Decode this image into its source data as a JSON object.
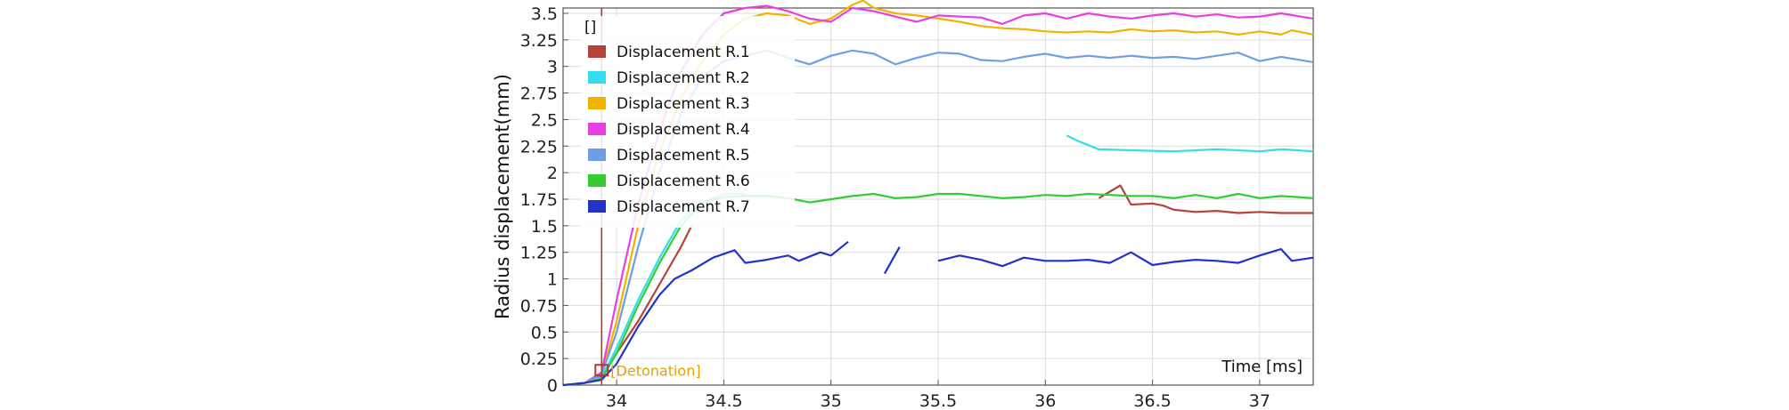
{
  "chart_data": {
    "type": "line",
    "xlabel": "Time [ms]",
    "ylabel": "Radius displacement(mm)",
    "xlim": [
      33.75,
      37.25
    ],
    "ylim": [
      0,
      3.55
    ],
    "x_ticks": [
      "34",
      "34.5",
      "35",
      "35.5",
      "36",
      "36.5",
      "37"
    ],
    "x_tick_values": [
      34,
      34.5,
      35,
      35.5,
      36,
      36.5,
      37
    ],
    "y_ticks": [
      "0",
      "0.25",
      "0.5",
      "0.75",
      "1",
      "1.25",
      "1.5",
      "1.75",
      "2",
      "2.25",
      "2.5",
      "2.75",
      "3",
      "3.25",
      "3.5"
    ],
    "y_tick_values": [
      0,
      0.25,
      0.5,
      0.75,
      1,
      1.25,
      1.5,
      1.75,
      2,
      2.25,
      2.5,
      2.75,
      3,
      3.25,
      3.5
    ],
    "grid": true,
    "legend_placement": "top-left",
    "legend_header": "[]",
    "annotation": {
      "text": "[Detonation]",
      "x": 33.93,
      "y": 0.14,
      "color": "#e8a000"
    },
    "marker_line": {
      "x": 33.93,
      "color": "#b03a2e"
    },
    "series": [
      {
        "name": "Displacement R.1",
        "color": "#b5433a",
        "segments": [
          [
            [
              33.75,
              0
            ],
            [
              33.85,
              0.02
            ],
            [
              33.93,
              0.08
            ],
            [
              34.0,
              0.3
            ],
            [
              34.1,
              0.6
            ],
            [
              34.2,
              0.95
            ],
            [
              34.3,
              1.3
            ],
            [
              34.35,
              1.5
            ]
          ],
          [
            [
              36.25,
              1.76
            ],
            [
              36.35,
              1.88
            ],
            [
              36.4,
              1.7
            ],
            [
              36.5,
              1.71
            ],
            [
              36.55,
              1.69
            ],
            [
              36.6,
              1.65
            ],
            [
              36.7,
              1.63
            ],
            [
              36.8,
              1.64
            ],
            [
              36.9,
              1.62
            ],
            [
              37.0,
              1.63
            ],
            [
              37.1,
              1.62
            ],
            [
              37.25,
              1.62
            ]
          ]
        ]
      },
      {
        "name": "Displacement R.2",
        "color": "#33ddee",
        "segments": [
          [
            [
              33.75,
              0
            ],
            [
              33.85,
              0.02
            ],
            [
              33.93,
              0.07
            ],
            [
              34.0,
              0.35
            ],
            [
              34.1,
              0.8
            ],
            [
              34.2,
              1.2
            ],
            [
              34.3,
              1.55
            ],
            [
              34.4,
              1.72
            ],
            [
              34.5,
              1.8
            ],
            [
              34.6,
              1.8
            ]
          ],
          [
            [
              36.1,
              2.35
            ],
            [
              36.15,
              2.3
            ],
            [
              36.25,
              2.22
            ],
            [
              36.4,
              2.21
            ],
            [
              36.6,
              2.2
            ],
            [
              36.8,
              2.22
            ],
            [
              37.0,
              2.2
            ],
            [
              37.1,
              2.22
            ],
            [
              37.25,
              2.2
            ]
          ]
        ]
      },
      {
        "name": "Displacement R.3",
        "color": "#f0b400",
        "segments": [
          [
            [
              33.75,
              0
            ],
            [
              33.85,
              0.02
            ],
            [
              33.93,
              0.1
            ],
            [
              34.0,
              0.6
            ],
            [
              34.1,
              1.5
            ],
            [
              34.2,
              2.2
            ],
            [
              34.3,
              2.7
            ],
            [
              34.4,
              3.05
            ],
            [
              34.5,
              3.3
            ],
            [
              34.6,
              3.45
            ],
            [
              34.7,
              3.5
            ],
            [
              34.8,
              3.48
            ],
            [
              34.9,
              3.4
            ],
            [
              35.0,
              3.45
            ],
            [
              35.1,
              3.58
            ],
            [
              35.15,
              3.62
            ],
            [
              35.2,
              3.55
            ],
            [
              35.3,
              3.5
            ],
            [
              35.4,
              3.48
            ],
            [
              35.5,
              3.45
            ],
            [
              35.6,
              3.42
            ],
            [
              35.7,
              3.38
            ],
            [
              35.8,
              3.36
            ],
            [
              35.9,
              3.35
            ],
            [
              36.0,
              3.33
            ],
            [
              36.1,
              3.32
            ],
            [
              36.2,
              3.33
            ],
            [
              36.3,
              3.32
            ],
            [
              36.4,
              3.35
            ],
            [
              36.5,
              3.33
            ],
            [
              36.6,
              3.34
            ],
            [
              36.7,
              3.32
            ],
            [
              36.8,
              3.33
            ],
            [
              36.9,
              3.3
            ],
            [
              37.0,
              3.33
            ],
            [
              37.1,
              3.3
            ],
            [
              37.15,
              3.34
            ],
            [
              37.25,
              3.3
            ]
          ]
        ]
      },
      {
        "name": "Displacement R.4",
        "color": "#e840e0",
        "segments": [
          [
            [
              33.75,
              0
            ],
            [
              33.85,
              0.02
            ],
            [
              33.93,
              0.12
            ],
            [
              34.0,
              0.8
            ],
            [
              34.1,
              1.7
            ],
            [
              34.2,
              2.4
            ],
            [
              34.3,
              2.95
            ],
            [
              34.4,
              3.3
            ],
            [
              34.5,
              3.5
            ],
            [
              34.6,
              3.55
            ],
            [
              34.7,
              3.57
            ],
            [
              34.8,
              3.52
            ],
            [
              34.9,
              3.45
            ],
            [
              35.0,
              3.42
            ],
            [
              35.1,
              3.55
            ],
            [
              35.2,
              3.52
            ],
            [
              35.3,
              3.47
            ],
            [
              35.4,
              3.42
            ],
            [
              35.5,
              3.48
            ],
            [
              35.6,
              3.47
            ],
            [
              35.7,
              3.46
            ],
            [
              35.8,
              3.4
            ],
            [
              35.9,
              3.48
            ],
            [
              36.0,
              3.5
            ],
            [
              36.1,
              3.45
            ],
            [
              36.2,
              3.5
            ],
            [
              36.3,
              3.47
            ],
            [
              36.4,
              3.45
            ],
            [
              36.5,
              3.48
            ],
            [
              36.6,
              3.5
            ],
            [
              36.7,
              3.47
            ],
            [
              36.8,
              3.49
            ],
            [
              36.9,
              3.46
            ],
            [
              37.0,
              3.47
            ],
            [
              37.1,
              3.5
            ],
            [
              37.25,
              3.45
            ]
          ]
        ]
      },
      {
        "name": "Displacement R.5",
        "color": "#6f9ee8",
        "segments": [
          [
            [
              33.75,
              0
            ],
            [
              33.85,
              0.02
            ],
            [
              33.93,
              0.1
            ],
            [
              34.0,
              0.5
            ],
            [
              34.1,
              1.3
            ],
            [
              34.2,
              2.0
            ],
            [
              34.3,
              2.55
            ],
            [
              34.4,
              2.9
            ],
            [
              34.5,
              3.05
            ],
            [
              34.6,
              3.1
            ],
            [
              34.7,
              3.15
            ],
            [
              34.8,
              3.08
            ],
            [
              34.9,
              3.02
            ],
            [
              35.0,
              3.1
            ],
            [
              35.1,
              3.15
            ],
            [
              35.2,
              3.12
            ],
            [
              35.3,
              3.02
            ],
            [
              35.4,
              3.08
            ],
            [
              35.5,
              3.13
            ],
            [
              35.6,
              3.12
            ],
            [
              35.7,
              3.06
            ],
            [
              35.8,
              3.05
            ],
            [
              35.9,
              3.09
            ],
            [
              36.0,
              3.12
            ],
            [
              36.1,
              3.08
            ],
            [
              36.2,
              3.1
            ],
            [
              36.3,
              3.08
            ],
            [
              36.4,
              3.1
            ],
            [
              36.5,
              3.08
            ],
            [
              36.6,
              3.09
            ],
            [
              36.7,
              3.07
            ],
            [
              36.8,
              3.1
            ],
            [
              36.9,
              3.13
            ],
            [
              37.0,
              3.05
            ],
            [
              37.1,
              3.09
            ],
            [
              37.25,
              3.04
            ]
          ]
        ]
      },
      {
        "name": "Displacement R.6",
        "color": "#33cc33",
        "segments": [
          [
            [
              33.75,
              0
            ],
            [
              33.85,
              0.02
            ],
            [
              33.93,
              0.06
            ],
            [
              34.0,
              0.3
            ],
            [
              34.1,
              0.75
            ],
            [
              34.2,
              1.15
            ],
            [
              34.3,
              1.5
            ],
            [
              34.4,
              1.72
            ],
            [
              34.5,
              1.77
            ],
            [
              34.6,
              1.78
            ],
            [
              34.7,
              1.78
            ],
            [
              34.8,
              1.76
            ],
            [
              34.9,
              1.72
            ],
            [
              35.0,
              1.75
            ],
            [
              35.1,
              1.78
            ],
            [
              35.2,
              1.8
            ],
            [
              35.3,
              1.76
            ],
            [
              35.4,
              1.77
            ],
            [
              35.5,
              1.8
            ],
            [
              35.6,
              1.8
            ],
            [
              35.7,
              1.78
            ],
            [
              35.8,
              1.76
            ],
            [
              35.9,
              1.77
            ],
            [
              36.0,
              1.79
            ],
            [
              36.1,
              1.78
            ],
            [
              36.2,
              1.8
            ],
            [
              36.3,
              1.79
            ],
            [
              36.4,
              1.78
            ],
            [
              36.5,
              1.78
            ],
            [
              36.6,
              1.76
            ],
            [
              36.7,
              1.79
            ],
            [
              36.8,
              1.76
            ],
            [
              36.9,
              1.8
            ],
            [
              37.0,
              1.76
            ],
            [
              37.1,
              1.78
            ],
            [
              37.25,
              1.76
            ]
          ]
        ]
      },
      {
        "name": "Displacement R.7",
        "color": "#2233cc",
        "segments": [
          [
            [
              33.75,
              0
            ],
            [
              33.85,
              0.02
            ],
            [
              33.93,
              0.05
            ],
            [
              34.0,
              0.2
            ],
            [
              34.1,
              0.55
            ],
            [
              34.2,
              0.85
            ],
            [
              34.27,
              1.0
            ],
            [
              34.35,
              1.08
            ],
            [
              34.45,
              1.2
            ],
            [
              34.55,
              1.27
            ],
            [
              34.6,
              1.15
            ],
            [
              34.7,
              1.18
            ],
            [
              34.8,
              1.22
            ],
            [
              34.85,
              1.17
            ],
            [
              34.95,
              1.25
            ],
            [
              35.0,
              1.22
            ],
            [
              35.05,
              1.3
            ],
            [
              35.08,
              1.35
            ]
          ],
          [
            [
              35.25,
              1.05
            ],
            [
              35.32,
              1.3
            ]
          ],
          [
            [
              35.5,
              1.17
            ],
            [
              35.6,
              1.22
            ],
            [
              35.7,
              1.18
            ],
            [
              35.8,
              1.12
            ],
            [
              35.9,
              1.2
            ],
            [
              36.0,
              1.17
            ],
            [
              36.1,
              1.17
            ],
            [
              36.2,
              1.18
            ],
            [
              36.3,
              1.15
            ],
            [
              36.4,
              1.25
            ],
            [
              36.5,
              1.13
            ],
            [
              36.6,
              1.16
            ],
            [
              36.7,
              1.18
            ],
            [
              36.8,
              1.17
            ],
            [
              36.9,
              1.15
            ],
            [
              37.0,
              1.22
            ],
            [
              37.1,
              1.28
            ],
            [
              37.15,
              1.17
            ],
            [
              37.25,
              1.2
            ]
          ]
        ]
      }
    ]
  }
}
